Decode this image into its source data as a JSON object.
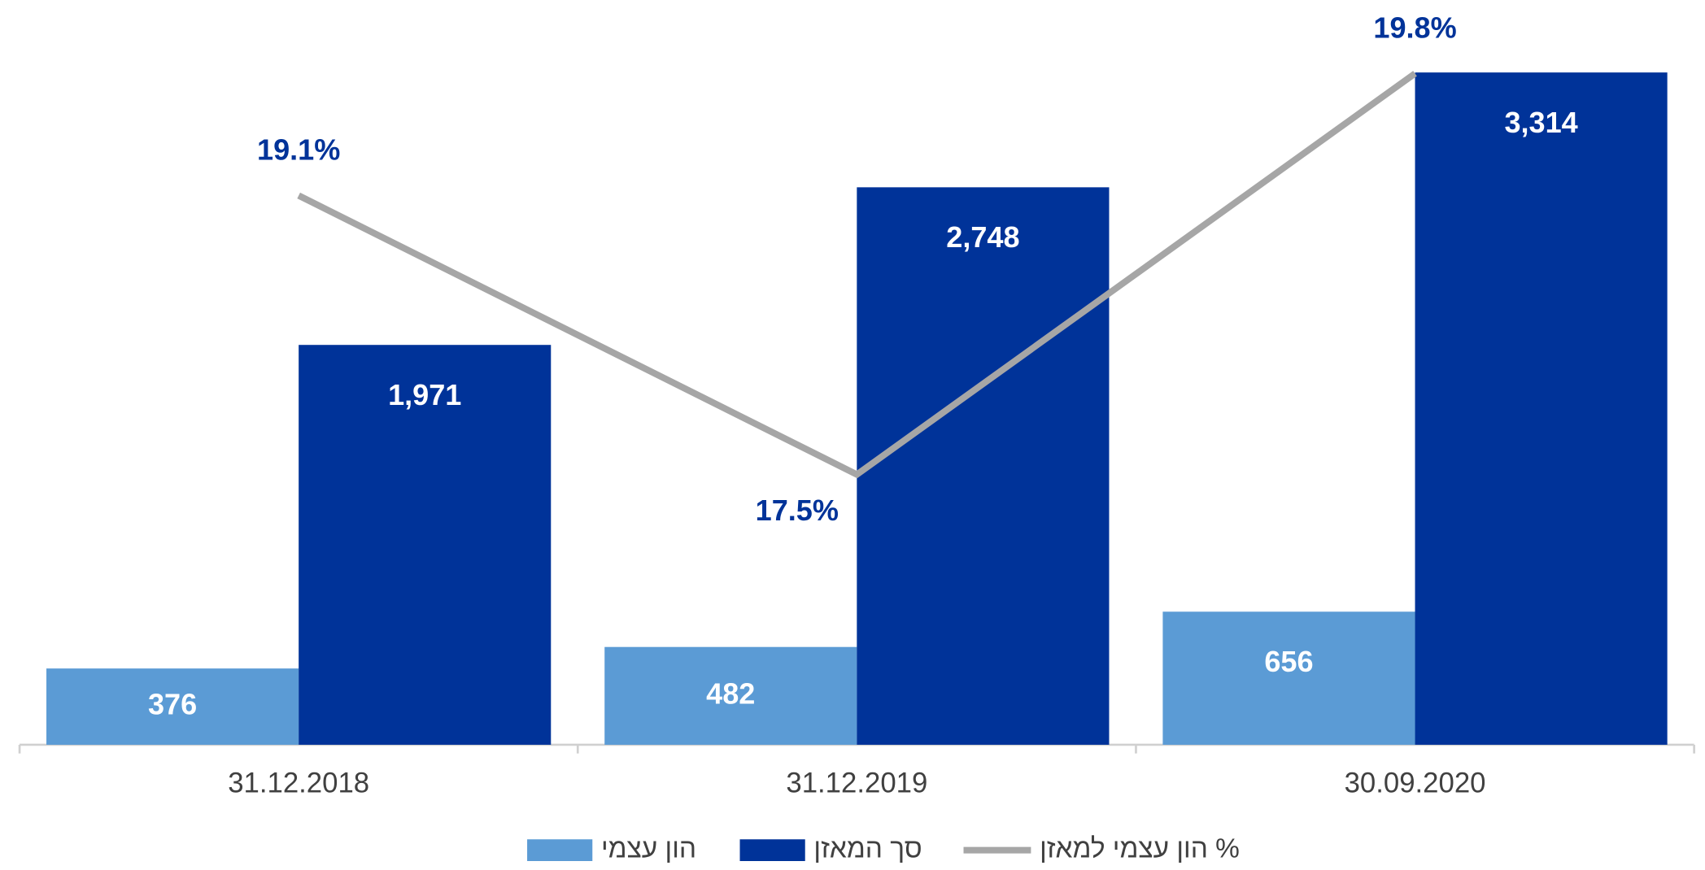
{
  "chart_data": {
    "type": "bar",
    "categories": [
      "31.12.2018",
      "31.12.2019",
      "30.09.2020"
    ],
    "series": [
      {
        "name": "הון עצמי",
        "color": "#5b9bd5",
        "values": [
          376,
          482,
          656
        ],
        "value_labels": [
          "376",
          "482",
          "656"
        ]
      },
      {
        "name": "סך המאזן",
        "color": "#003399",
        "values": [
          1971,
          2748,
          3314
        ],
        "value_labels": [
          "1,971",
          "2,748",
          "3,314"
        ]
      },
      {
        "name": "% הון עצמי למאזן",
        "type": "line",
        "axis": "y2",
        "color": "#a6a6a6",
        "values": [
          19.1,
          17.5,
          19.8
        ],
        "value_labels": [
          "19.1%",
          "17.5%",
          "19.8%"
        ]
      }
    ],
    "ylim": [
      0,
      3670
    ],
    "y2lim": [
      15.95,
      20.22
    ]
  }
}
